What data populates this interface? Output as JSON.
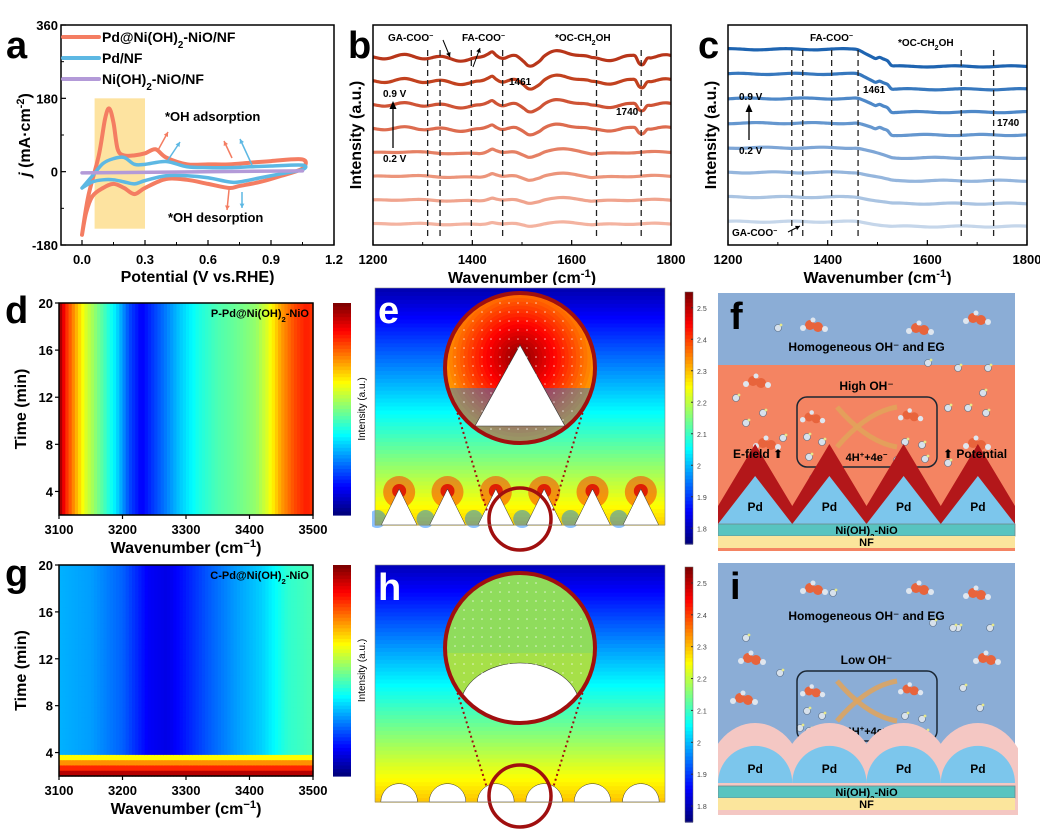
{
  "chart_data": [
    {
      "panel": "a",
      "type": "line",
      "xlabel": "Potential (V vs.RHE)",
      "ylabel": "j (mA·cm⁻²)",
      "xlim": [
        -0.1,
        1.2
      ],
      "ylim": [
        -180,
        360
      ],
      "xticks": [
        "0.0",
        "0.3",
        "0.6",
        "0.9",
        "1.2"
      ],
      "xtick_values": [
        0,
        0.3,
        0.6,
        0.9,
        1.2
      ],
      "yticks": [
        "-180",
        "0",
        "180",
        "360"
      ],
      "ytick_values": [
        -180,
        0,
        180,
        360
      ],
      "legend": [
        "Pd@Ni(OH)₂-NiO/NF",
        "Pd/NF",
        "Ni(OH)₂-NiO/NF"
      ],
      "legend_position": "top-left",
      "highlight_region": {
        "x": [
          0.06,
          0.3
        ],
        "y": [
          -140,
          180
        ],
        "color": "#fde3a0"
      },
      "annotations": [
        "*OH adsorption",
        "*OH desorption"
      ],
      "series": [
        {
          "name": "Pd@Ni(OH)₂-NiO/NF",
          "color": "#f47d62",
          "x": [
            0.0,
            0.03,
            0.08,
            0.11,
            0.13,
            0.15,
            0.17,
            0.2,
            0.25,
            0.3,
            0.35,
            0.4,
            0.5,
            0.6,
            0.7,
            0.8,
            0.9,
            1.05,
            1.05,
            0.95,
            0.85,
            0.75,
            0.7,
            0.6,
            0.5,
            0.4,
            0.3,
            0.25,
            0.2,
            0.15,
            0.1,
            0.05,
            0.02,
            0.0
          ],
          "y": [
            -155,
            -60,
            40,
            130,
            155,
            120,
            55,
            40,
            40,
            45,
            55,
            35,
            18,
            18,
            18,
            22,
            26,
            30,
            8,
            -10,
            -25,
            -35,
            -40,
            -30,
            -20,
            -18,
            -40,
            -55,
            -40,
            -30,
            -40,
            -60,
            -100,
            -155
          ]
        },
        {
          "name": "Pd/NF",
          "color": "#5db8e3",
          "x": [
            0.0,
            0.05,
            0.1,
            0.15,
            0.2,
            0.25,
            0.3,
            0.4,
            0.5,
            0.6,
            0.7,
            0.8,
            0.9,
            1.05,
            1.05,
            0.95,
            0.85,
            0.75,
            0.7,
            0.6,
            0.5,
            0.4,
            0.3,
            0.25,
            0.2,
            0.15,
            0.1,
            0.05,
            0.0
          ],
          "y": [
            -40,
            -10,
            20,
            32,
            35,
            18,
            18,
            25,
            12,
            10,
            10,
            12,
            14,
            16,
            5,
            -5,
            -15,
            -25,
            -25,
            -15,
            -10,
            -10,
            -22,
            -30,
            -25,
            -20,
            -20,
            -25,
            -40
          ]
        },
        {
          "name": "Ni(OH)₂-NiO/NF",
          "color": "#b39ad8",
          "x": [
            0.0,
            1.05
          ],
          "y": [
            -3,
            2
          ]
        }
      ]
    },
    {
      "panel": "b",
      "type": "line",
      "xlabel": "Wavenumber (cm⁻¹)",
      "ylabel": "Intensity (a.u.)",
      "xlim": [
        1200,
        1800
      ],
      "xticks": [
        "1200",
        "1400",
        "1600",
        "1800"
      ],
      "xtick_values": [
        1200,
        1400,
        1600,
        1800
      ],
      "potential_labels": {
        "top": "0.9 V",
        "bottom": "0.2 V"
      },
      "band_labels": [
        "GA-COO⁻",
        "FA-COO⁻",
        "*OC-CH₂OH"
      ],
      "peak_labels": [
        "1461",
        "1740"
      ],
      "dashed_lines": [
        1310,
        1335,
        1398,
        1461,
        1650,
        1740
      ],
      "series_count": 8,
      "colors": [
        "#f4b3a0",
        "#f0a48e",
        "#ec957b",
        "#e58064",
        "#dd6c4f",
        "#cf5436",
        "#c2421f",
        "#b8361a"
      ],
      "curve_type": "red-orange"
    },
    {
      "panel": "c",
      "type": "line",
      "xlabel": "Wavenumber (cm⁻¹)",
      "ylabel": "Intensity (a.u.)",
      "xlim": [
        1200,
        1800
      ],
      "xticks": [
        "1200",
        "1400",
        "1600",
        "1800"
      ],
      "xtick_values": [
        1200,
        1400,
        1600,
        1800
      ],
      "potential_labels": {
        "top": "0.9 V",
        "bottom": "0.2 V"
      },
      "band_labels": [
        "FA-COO⁻",
        "*OC-CH₂OH",
        "GA-COO⁻"
      ],
      "peak_labels": [
        "1461",
        "1740"
      ],
      "dashed_lines": [
        1328,
        1350,
        1408,
        1461,
        1668,
        1733
      ],
      "series_count": 8,
      "colors": [
        "#c5d6ea",
        "#aac4e2",
        "#95b6dd",
        "#7ea6d6",
        "#6597cf",
        "#4e88c8",
        "#3778be",
        "#1e64b1"
      ],
      "curve_type": "blue"
    },
    {
      "panel": "d",
      "type": "heatmap",
      "label": "P-Pd@Ni(OH)₂-NiO",
      "xlabel": "Wavenumber (cm⁻¹)",
      "ylabel": "Time (min)",
      "xlim": [
        3100,
        3500
      ],
      "ylim": [
        2,
        20
      ],
      "xticks": [
        "3100",
        "3200",
        "3300",
        "3400",
        "3500"
      ],
      "yticks": [
        "4",
        "8",
        "12",
        "16",
        "20"
      ],
      "colorbar_label": "Intensity (a.u.)",
      "profile_x": [
        3100,
        3110,
        3125,
        3140,
        3160,
        3190,
        3210,
        3230,
        3260,
        3290,
        3320,
        3350,
        3380,
        3410,
        3430,
        3450,
        3470,
        3490,
        3500
      ],
      "profile_v": [
        1.0,
        0.85,
        0.72,
        0.6,
        0.5,
        0.35,
        0.2,
        0.12,
        0.22,
        0.32,
        0.4,
        0.45,
        0.48,
        0.52,
        0.6,
        0.72,
        0.8,
        0.85,
        0.82
      ]
    },
    {
      "panel": "g",
      "type": "heatmap",
      "label": "C-Pd@Ni(OH)₂-NiO",
      "xlabel": "Wavenumber (cm⁻¹)",
      "ylabel": "Time (min)",
      "xlim": [
        3100,
        3500
      ],
      "ylim": [
        2,
        20
      ],
      "xticks": [
        "3100",
        "3200",
        "3300",
        "3400",
        "3500"
      ],
      "yticks": [
        "4",
        "8",
        "12",
        "16",
        "20"
      ],
      "colorbar_label": "Intensity (a.u.)",
      "profile_x": [
        3100,
        3150,
        3200,
        3240,
        3270,
        3300,
        3340,
        3380,
        3420,
        3460,
        3500
      ],
      "profile_v": [
        0.3,
        0.28,
        0.22,
        0.12,
        0.1,
        0.15,
        0.22,
        0.28,
        0.33,
        0.42,
        0.45
      ],
      "hot_band_time": [
        2,
        3.8
      ]
    },
    {
      "panel": "e",
      "type": "heatmap",
      "label": "Intensity (a.u.)",
      "description": "Simulated field intensity around triangular (tip) Pd particles with zoomed inset",
      "particle_shape": "triangle",
      "particle_count": 6
    },
    {
      "panel": "h",
      "type": "heatmap",
      "label": "Intensity (a.u.)",
      "description": "Simulated field intensity around hemispherical Pd particles with zoomed inset",
      "particle_shape": "hemisphere",
      "particle_count": 6
    },
    {
      "panel": "colorbar-e-h",
      "type": "heatmap",
      "ticks": [
        "2.5",
        "2.4",
        "2.3",
        "2.2",
        "2.1",
        "2",
        "1.9",
        "1.8"
      ],
      "tick_values": [
        2.5,
        2.4,
        2.3,
        2.2,
        2.1,
        2.0,
        1.9,
        1.8
      ],
      "range": [
        1.75,
        2.55
      ]
    }
  ],
  "panels": {
    "a": "a",
    "b": "b",
    "c": "c",
    "d": "d",
    "e": "e",
    "f": "f",
    "g": "g",
    "h": "h",
    "i": "i"
  },
  "schematic_f": {
    "top_label": "Homogeneous OH⁻ and EG",
    "box_title": "High OH⁻",
    "box_reaction": "4H⁺+4e⁻",
    "left_label": "E-field",
    "right_label": "Potential",
    "pd_labels": [
      "Pd",
      "Pd",
      "Pd",
      "Pd"
    ],
    "support_label": "Ni(OH)₂-NiO",
    "substrate_label": "NF",
    "electrolyte_color": "#8badd6",
    "enriched_color": "#f48462"
  },
  "schematic_i": {
    "top_label": "Homogeneous OH⁻ and EG",
    "box_title": "Low OH⁻",
    "box_reaction": "4H⁺+4e⁻",
    "pd_labels": [
      "Pd",
      "Pd",
      "Pd",
      "Pd"
    ],
    "support_label": "Ni(OH)₂-NiO",
    "substrate_label": "NF",
    "electrolyte_color": "#8badd6"
  }
}
